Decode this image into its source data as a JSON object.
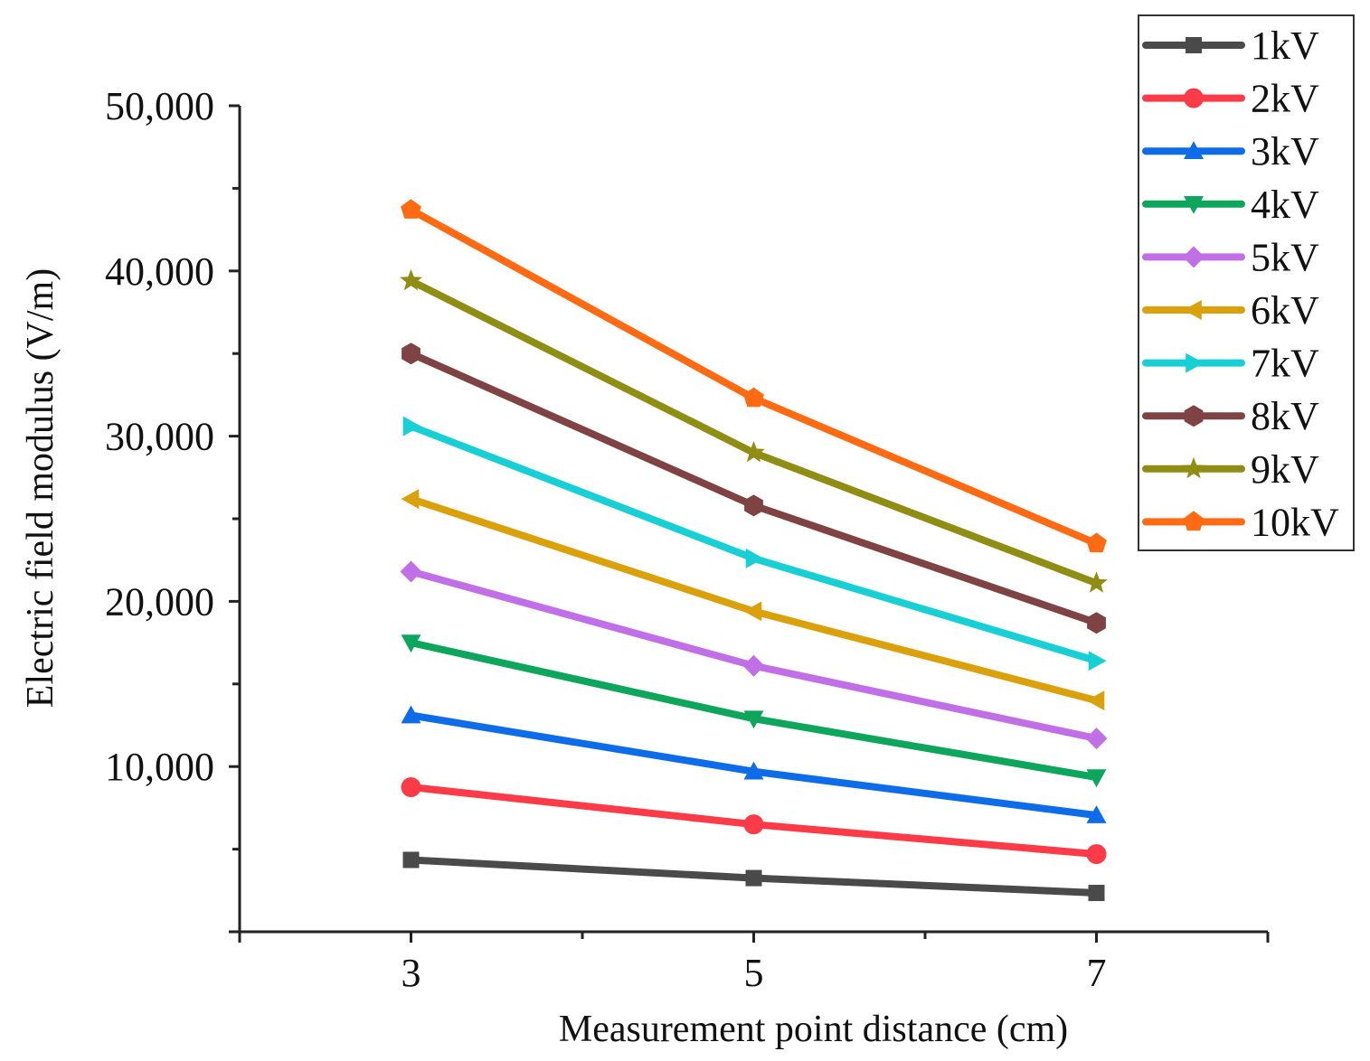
{
  "chart_data": {
    "type": "line",
    "title": "",
    "xlabel": "Measurement point distance (cm)",
    "ylabel": "Electric field modulus (V/m)",
    "x": [
      3,
      5,
      7
    ],
    "xlim": [
      2,
      8
    ],
    "ylim": [
      0,
      50000
    ],
    "x_ticks": [
      {
        "value": 3,
        "label": "3"
      },
      {
        "value": 5,
        "label": "5"
      },
      {
        "value": 7,
        "label": "7"
      }
    ],
    "y_ticks": [
      {
        "value": 10000,
        "label": "10,000"
      },
      {
        "value": 20000,
        "label": "20,000"
      },
      {
        "value": 30000,
        "label": "30,000"
      },
      {
        "value": 40000,
        "label": "40,000"
      },
      {
        "value": 50000,
        "label": "50,000"
      }
    ],
    "grid": false,
    "legend_position": "top-right",
    "series": [
      {
        "name": "1kV",
        "color": "#4a4a4a",
        "marker": "square",
        "values": [
          4350,
          3250,
          2350
        ]
      },
      {
        "name": "2kV",
        "color": "#fb3b47",
        "marker": "circle",
        "values": [
          8750,
          6500,
          4700
        ]
      },
      {
        "name": "3kV",
        "color": "#0f6ce8",
        "marker": "triangle-up",
        "values": [
          13100,
          9700,
          7050
        ]
      },
      {
        "name": "4kV",
        "color": "#0ea55d",
        "marker": "triangle-down",
        "values": [
          17500,
          12900,
          9350
        ]
      },
      {
        "name": "5kV",
        "color": "#c16fe6",
        "marker": "diamond",
        "values": [
          21800,
          16100,
          11700
        ]
      },
      {
        "name": "6kV",
        "color": "#dba10d",
        "marker": "triangle-left",
        "values": [
          26200,
          19400,
          14000
        ]
      },
      {
        "name": "7kV",
        "color": "#17cfd4",
        "marker": "triangle-right",
        "values": [
          30600,
          22600,
          16400
        ]
      },
      {
        "name": "8kV",
        "color": "#7f4343",
        "marker": "hexagon",
        "values": [
          35000,
          25800,
          18700
        ]
      },
      {
        "name": "9kV",
        "color": "#8f8d14",
        "marker": "star",
        "values": [
          39400,
          29000,
          21100
        ]
      },
      {
        "name": "10kV",
        "color": "#ff6a12",
        "marker": "pentagon",
        "values": [
          43700,
          32300,
          23500
        ]
      }
    ]
  }
}
